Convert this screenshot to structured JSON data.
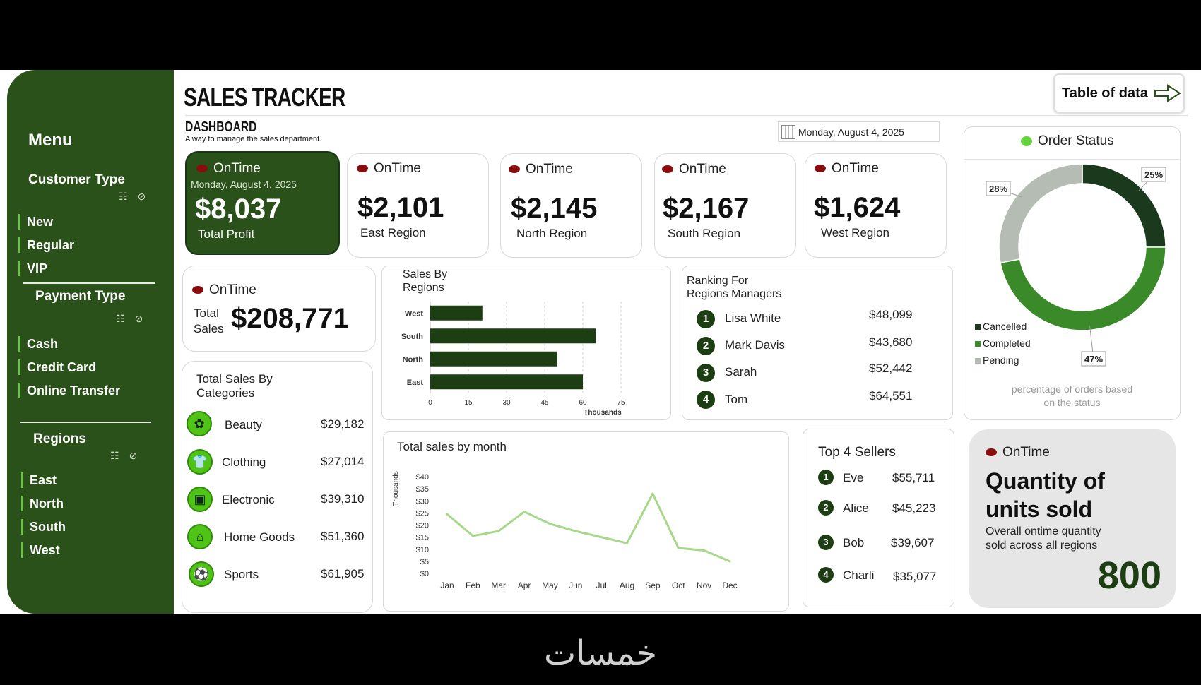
{
  "sidebar": {
    "title": "Menu",
    "customer_type": {
      "label": "Customer Type",
      "items": [
        "New",
        "Regular",
        "VIP"
      ]
    },
    "payment_type": {
      "label": "Payment Type",
      "items": [
        "Cash",
        "Credit Card",
        "Online Transfer"
      ]
    },
    "regions": {
      "label": "Regions",
      "items": [
        "East",
        "North",
        "South",
        "West"
      ]
    }
  },
  "header": {
    "title": "SALES TRACKER",
    "subtitle": "DASHBOARD",
    "tagline": "A way to manage the sales department.",
    "date": "Monday, August 4, 2025",
    "table_button": "Table of data"
  },
  "kpis": {
    "profit": {
      "status": "OnTime",
      "date": "Monday, August 4, 2025",
      "value": "$8,037",
      "label": "Total Profit"
    },
    "east": {
      "status": "OnTime",
      "value": "$2,101",
      "label": "East Region"
    },
    "north": {
      "status": "OnTime",
      "value": "$2,145",
      "label": "North Region"
    },
    "south": {
      "status": "OnTime",
      "value": "$2,167",
      "label": "South Region"
    },
    "west": {
      "status": "OnTime",
      "value": "$1,624",
      "label": "West Region"
    },
    "total_sales": {
      "status": "OnTime",
      "label_1": "Total",
      "label_2": "Sales",
      "value": "$208,771"
    }
  },
  "categories": {
    "title_1": "Total Sales By",
    "title_2": "Categories",
    "items": [
      {
        "name": "Beauty",
        "value": "$29,182",
        "icon": "lotus-icon"
      },
      {
        "name": "Clothing",
        "value": "$27,014",
        "icon": "shirt-icon"
      },
      {
        "name": "Electronic",
        "value": "$39,310",
        "icon": "appliance-icon"
      },
      {
        "name": "Home Goods",
        "value": "$51,360",
        "icon": "home-goods-icon"
      },
      {
        "name": "Sports",
        "value": "$61,905",
        "icon": "sports-ball-icon"
      }
    ]
  },
  "region_chart_title_1": "Sales By",
  "region_chart_title_2": "Regions",
  "ranking": {
    "title_1": "Ranking For",
    "title_2": "Regions Managers",
    "items": [
      {
        "rank": "1",
        "name": "Lisa White",
        "value": "$48,099"
      },
      {
        "rank": "2",
        "name": "Mark Davis",
        "value": "$43,680"
      },
      {
        "rank": "3",
        "name": "Sarah",
        "value": "$52,442"
      },
      {
        "rank": "4",
        "name": "Tom",
        "value": "$64,551"
      }
    ]
  },
  "order_status": {
    "title": "Order Status",
    "caption_1": "percentage of orders based",
    "caption_2": "on the status",
    "legend": [
      "Cancelled",
      "Completed",
      "Pending"
    ]
  },
  "monthly_title": "Total sales by month",
  "top_sellers": {
    "title": "Top 4 Sellers",
    "items": [
      {
        "rank": "1",
        "name": "Eve",
        "value": "$55,711"
      },
      {
        "rank": "2",
        "name": "Alice",
        "value": "$45,223"
      },
      {
        "rank": "3",
        "name": "Bob",
        "value": "$39,607"
      },
      {
        "rank": "4",
        "name": "Charli",
        "value": "$35,077"
      }
    ]
  },
  "quantity": {
    "status": "OnTime",
    "title_1": "Quantity of",
    "title_2": "units sold",
    "desc_1": "Overall ontime quantity",
    "desc_2": "sold across all regions",
    "value": "800"
  },
  "footer_logo": "خمسات",
  "colors": {
    "dark_green": "#1d3d13",
    "mid_green": "#3a8a2a",
    "light_gray": "#b5bcb3",
    "line_green": "#a6d88a",
    "sidebar": "#2a5119"
  },
  "chart_data": [
    {
      "type": "bar",
      "title": "Sales By Regions",
      "categories": [
        "West",
        "South",
        "North",
        "East"
      ],
      "values": [
        20.5,
        65,
        50,
        60
      ],
      "xlabel": "Thousands",
      "xticks": [
        "0",
        "15",
        "30",
        "45",
        "60",
        "75"
      ],
      "xlim": [
        0,
        75
      ],
      "grid": true
    },
    {
      "type": "pie",
      "title": "Order Status",
      "slices": [
        {
          "name": "Cancelled",
          "value": 25,
          "label": "25%",
          "color": "#1b3a1d"
        },
        {
          "name": "Completed",
          "value": 47,
          "label": "47%",
          "color": "#3a8a2a"
        },
        {
          "name": "Pending",
          "value": 28,
          "label": "28%",
          "color": "#b5bcb3"
        }
      ],
      "legend": "bottom-left"
    },
    {
      "type": "line",
      "title": "Total sales by month",
      "ylabel": "Thousands",
      "x": [
        "Jan",
        "Feb",
        "Mar",
        "Apr",
        "May",
        "Jun",
        "Jul",
        "Aug",
        "Sep",
        "Oct",
        "Nov",
        "Dec"
      ],
      "y": [
        24.5,
        15.5,
        17.5,
        25.5,
        20.5,
        17.5,
        15,
        12.5,
        33,
        10.5,
        9.5,
        5
      ],
      "yticks": [
        "$0",
        "$5",
        "$10",
        "$15",
        "$20",
        "$25",
        "$30",
        "$35",
        "$40"
      ],
      "ylim": [
        0,
        40
      ],
      "grid": false
    }
  ]
}
